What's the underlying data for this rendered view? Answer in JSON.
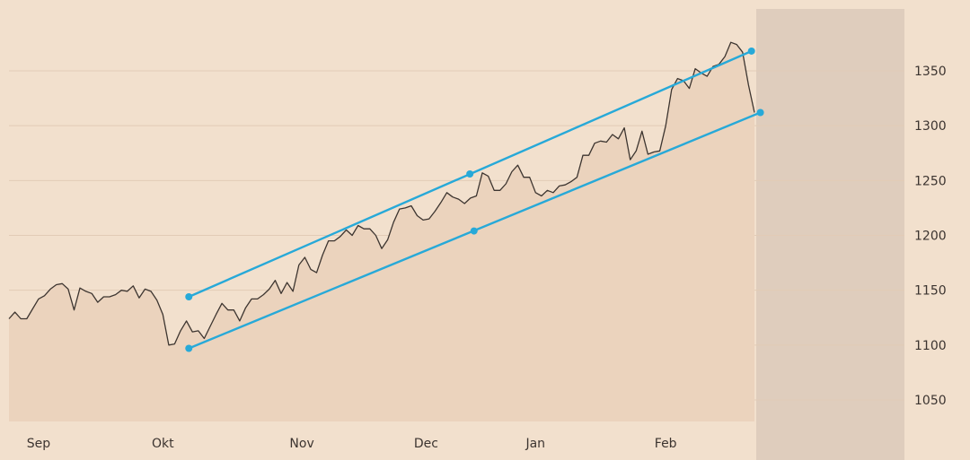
{
  "chart_data": {
    "type": "area",
    "title": "",
    "xlabel": "",
    "ylabel": "",
    "ylim": [
      1010,
      1395
    ],
    "grid": true,
    "y_ticks": [
      1050,
      1100,
      1150,
      1200,
      1250,
      1300,
      1350
    ],
    "x_ticks": [
      {
        "label": "Sep",
        "at": 5
      },
      {
        "label": "Okt",
        "at": 26
      },
      {
        "label": "Nov",
        "at": 49.5
      },
      {
        "label": "Dec",
        "at": 70.5
      },
      {
        "label": "Jan",
        "at": 89
      },
      {
        "label": "Feb",
        "at": 111
      }
    ],
    "series": [
      {
        "values": [
          1124,
          1130,
          1124,
          1124,
          1133,
          1142,
          1145,
          1151,
          1155,
          1156,
          1151,
          1132,
          1152,
          1149,
          1147,
          1139,
          1144,
          1144,
          1146,
          1150,
          1149,
          1154,
          1143,
          1151,
          1149,
          1141,
          1128,
          1100,
          1101,
          1113,
          1122,
          1112,
          1113,
          1106,
          1117,
          1128,
          1138,
          1132,
          1132,
          1122,
          1134,
          1142,
          1142,
          1146,
          1151,
          1159,
          1147,
          1157,
          1149,
          1173,
          1180,
          1169,
          1166,
          1182,
          1195,
          1195,
          1199,
          1205,
          1200,
          1209,
          1206,
          1206,
          1200,
          1188,
          1196,
          1212,
          1224,
          1225,
          1227,
          1218,
          1214,
          1215,
          1222,
          1230,
          1239,
          1235,
          1233,
          1229,
          1234,
          1236,
          1257,
          1254,
          1241,
          1241,
          1247,
          1258,
          1264,
          1253,
          1253,
          1239,
          1236,
          1241,
          1239,
          1245,
          1246,
          1249,
          1253,
          1273,
          1273,
          1284,
          1286,
          1285,
          1292,
          1288,
          1298,
          1269,
          1277,
          1295,
          1274,
          1276,
          1277,
          1300,
          1333,
          1343,
          1341,
          1334,
          1352,
          1348,
          1345,
          1354,
          1356,
          1363,
          1376,
          1374,
          1367,
          1337,
          1312
        ]
      }
    ],
    "trend_channel": {
      "upper": [
        [
          30.4,
          1144
        ],
        [
          77.9,
          1256
        ],
        [
          125.5,
          1368
        ]
      ],
      "lower": [
        [
          30.4,
          1097
        ],
        [
          78.6,
          1204
        ],
        [
          127,
          1312
        ]
      ]
    },
    "colors": {
      "background": "#f2e0cd",
      "area_fill": "#ebd3bd",
      "line": "#3d3530",
      "channel": "#27a9d8",
      "future_shade": "#dfcdbd",
      "grid": "#e2cbb6"
    }
  }
}
